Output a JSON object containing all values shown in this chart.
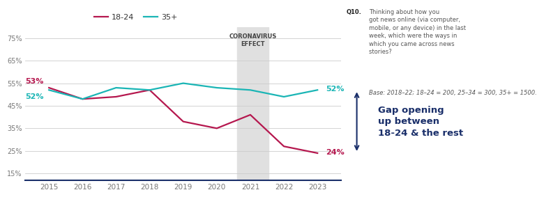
{
  "years_18_24": [
    2015,
    2016,
    2017,
    2018,
    2019,
    2020,
    2021,
    2022,
    2023
  ],
  "values_18_24": [
    53,
    48,
    49,
    52,
    38,
    35,
    41,
    27,
    24
  ],
  "years_35plus": [
    2015,
    2016,
    2017,
    2018,
    2019,
    2020,
    2021,
    2022,
    2023
  ],
  "values_35plus": [
    52,
    48,
    53,
    52,
    55,
    53,
    52,
    49,
    52
  ],
  "color_18_24": "#b5174e",
  "color_35plus": "#1ab5b5",
  "color_arrow": "#1a2f6a",
  "color_gap_text": "#1a2f6a",
  "color_spine_bottom": "#1a2f6a",
  "background_shading": "#e0e0e0",
  "shading_xmin": 2020.6,
  "shading_xmax": 2021.55,
  "ylim": [
    12,
    80
  ],
  "yticks": [
    15,
    25,
    35,
    45,
    55,
    65,
    75
  ],
  "ytick_labels": [
    "15%",
    "25%",
    "35%",
    "45%",
    "55%",
    "65%",
    "75%"
  ],
  "xlim_left": 2014.3,
  "xlim_right": 2023.7,
  "xticks": [
    2015,
    2016,
    2017,
    2018,
    2019,
    2020,
    2021,
    2022,
    2023
  ],
  "coronavirus_text": "CORONAVIRUS\nEFFECT",
  "coronavirus_x": 2021.08,
  "coronavirus_y": 77,
  "gap_text": "Gap opening\nup between\n18-24 & the rest",
  "label_18_24": "18-24",
  "label_35plus": "35+",
  "start_label_18_24": "53%",
  "start_label_35plus": "52%",
  "end_label_18_24": "24%",
  "end_label_35plus": "52%",
  "q10_bold": "Q10.",
  "q10_rest": " Thinking about how you got news online (via computer, mobile, or any device) in the last week, which were the ways in which you came across news stories? ",
  "q10_italic": "Base: 2018–22; 18–24 = 200, 25–34 = 300, 35+ = 1500.",
  "grid_color": "#cccccc",
  "tick_color": "#777777"
}
